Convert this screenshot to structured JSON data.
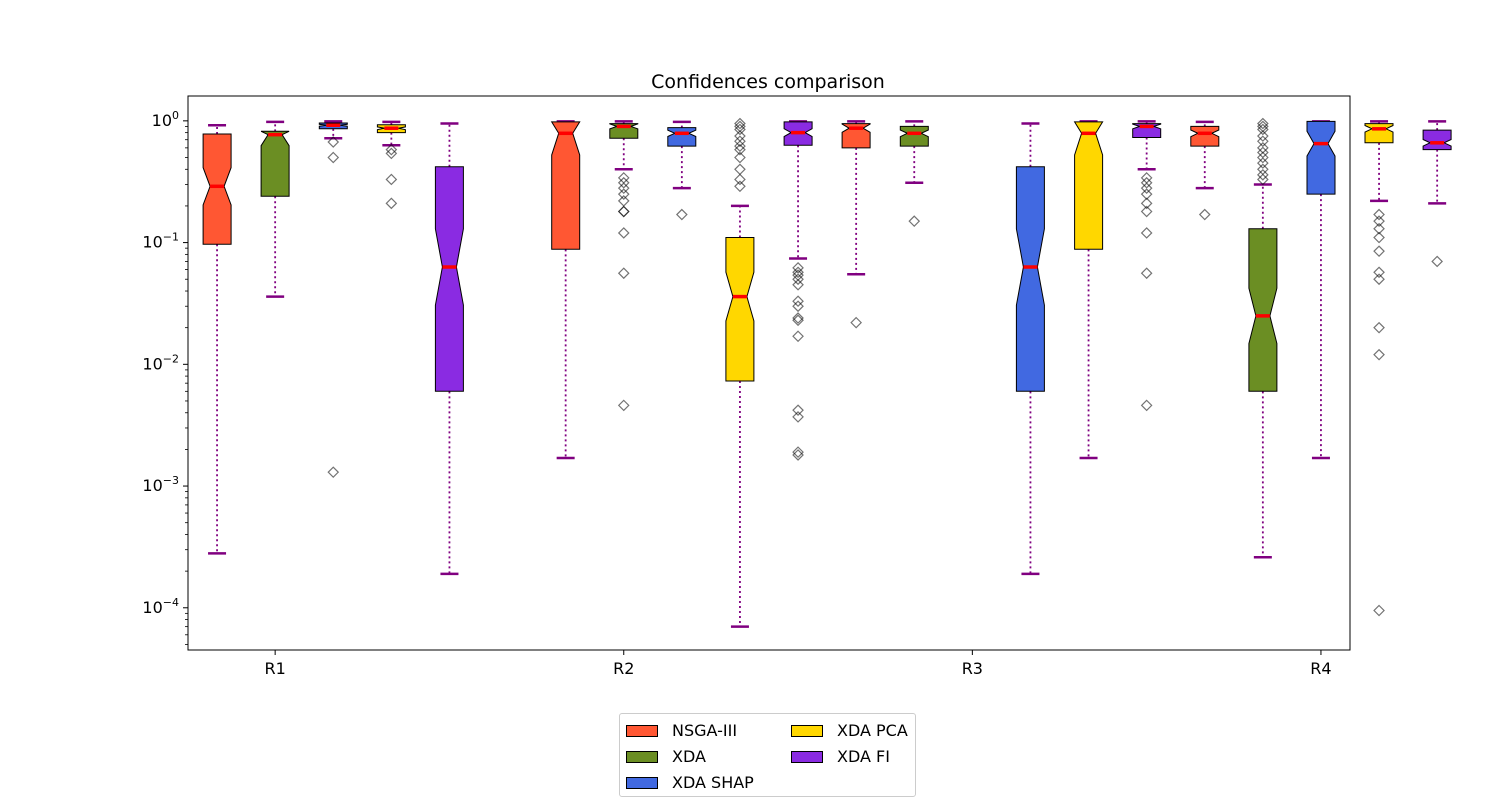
{
  "chart_data": {
    "type": "boxplot",
    "title": "Confidences comparison",
    "xlabel": "",
    "ylabel": "",
    "yscale": "log",
    "ylim": [
      4.5e-05,
      1.6
    ],
    "y_ticks": [
      {
        "value": 1,
        "label_base": "10",
        "label_exp": "0"
      },
      {
        "value": 0.1,
        "label_base": "10",
        "label_exp": "−1"
      },
      {
        "value": 0.01,
        "label_base": "10",
        "label_exp": "−2"
      },
      {
        "value": 0.001,
        "label_base": "10",
        "label_exp": "−3"
      },
      {
        "value": 0.0001,
        "label_base": "10",
        "label_exp": "−4"
      }
    ],
    "x_ticks": [
      {
        "label": "R1",
        "position": 1
      },
      {
        "label": "R2",
        "position": 7
      },
      {
        "label": "R3",
        "position": 13
      },
      {
        "label": "R4",
        "position": 19
      }
    ],
    "xlim": [
      -0.5,
      19.5
    ],
    "legend_position": "below",
    "series": [
      {
        "name": "NSGA-III",
        "color": "#FF5733"
      },
      {
        "name": "XDA",
        "color": "#6B8E23"
      },
      {
        "name": "XDA SHAP",
        "color": "#4169E1"
      },
      {
        "name": "XDA PCA",
        "color": "#FFD700"
      },
      {
        "name": "XDA FI",
        "color": "#8A2BE2"
      }
    ],
    "boxes": [
      {
        "position": 0,
        "series": "NSGA-III",
        "whislo": 0.00028,
        "q1": 0.097,
        "med": 0.29,
        "q3": 0.78,
        "whishi": 0.92,
        "fliers": []
      },
      {
        "position": 1,
        "series": "XDA",
        "whislo": 0.036,
        "q1": 0.24,
        "med": 0.77,
        "q3": 0.82,
        "whishi": 0.98,
        "fliers": []
      },
      {
        "position": 2,
        "series": "XDA SHAP",
        "whislo": 0.72,
        "q1": 0.86,
        "med": 0.92,
        "q3": 0.96,
        "whishi": 0.99,
        "fliers": [
          0.67,
          0.5,
          0.0013
        ]
      },
      {
        "position": 3,
        "series": "XDA PCA",
        "whislo": 0.63,
        "q1": 0.8,
        "med": 0.87,
        "q3": 0.93,
        "whishi": 0.98,
        "fliers": [
          0.58,
          0.54,
          0.33,
          0.21
        ]
      },
      {
        "position": 4,
        "series": "XDA FI",
        "whislo": 0.00019,
        "q1": 0.006,
        "med": 0.063,
        "q3": 0.42,
        "whishi": 0.95,
        "fliers": []
      },
      {
        "position": 6,
        "series": "NSGA-III",
        "whislo": 0.0017,
        "q1": 0.088,
        "med": 0.79,
        "q3": 0.98,
        "whishi": 0.99,
        "fliers": []
      },
      {
        "position": 7,
        "series": "XDA",
        "whislo": 0.4,
        "q1": 0.72,
        "med": 0.9,
        "q3": 0.95,
        "whishi": 0.99,
        "fliers": [
          0.34,
          0.31,
          0.28,
          0.25,
          0.22,
          0.18,
          0.18,
          0.12,
          0.056,
          0.0046
        ]
      },
      {
        "position": 8,
        "series": "XDA SHAP",
        "whislo": 0.28,
        "q1": 0.62,
        "med": 0.79,
        "q3": 0.88,
        "whishi": 0.98,
        "fliers": [
          0.17
        ]
      },
      {
        "position": 9,
        "series": "XDA PCA",
        "whislo": 7e-05,
        "q1": 0.0073,
        "med": 0.036,
        "q3": 0.11,
        "whishi": 0.2,
        "fliers": [
          0.95,
          0.9,
          0.85,
          0.75,
          0.68,
          0.62,
          0.58,
          0.5,
          0.4,
          0.33,
          0.29
        ]
      },
      {
        "position": 10,
        "series": "XDA FI",
        "whislo": 0.074,
        "q1": 0.63,
        "med": 0.8,
        "q3": 0.98,
        "whishi": 0.99,
        "fliers": [
          0.062,
          0.057,
          0.054,
          0.05,
          0.045,
          0.033,
          0.03,
          0.024,
          0.023,
          0.017,
          0.0042,
          0.0037,
          0.0019,
          0.0018
        ]
      },
      {
        "position": 11,
        "series": "NSGA-III",
        "whislo": 0.055,
        "q1": 0.6,
        "med": 0.87,
        "q3": 0.95,
        "whishi": 0.99,
        "fliers": [
          0.022
        ]
      },
      {
        "position": 12,
        "series": "XDA",
        "whislo": 0.31,
        "q1": 0.62,
        "med": 0.79,
        "q3": 0.9,
        "whishi": 0.99,
        "fliers": [
          0.15
        ]
      },
      {
        "position": 14,
        "series": "XDA SHAP",
        "whislo": 0.00019,
        "q1": 0.006,
        "med": 0.063,
        "q3": 0.42,
        "whishi": 0.95,
        "fliers": []
      },
      {
        "position": 15,
        "series": "XDA PCA",
        "whislo": 0.0017,
        "q1": 0.088,
        "med": 0.79,
        "q3": 0.98,
        "whishi": 0.99,
        "fliers": []
      },
      {
        "position": 16,
        "series": "XDA FI",
        "whislo": 0.4,
        "q1": 0.73,
        "med": 0.9,
        "q3": 0.95,
        "whishi": 0.99,
        "fliers": [
          0.34,
          0.31,
          0.28,
          0.25,
          0.21,
          0.18,
          0.12,
          0.056,
          0.0046
        ]
      },
      {
        "position": 17,
        "series": "NSGA-III",
        "whislo": 0.28,
        "q1": 0.62,
        "med": 0.79,
        "q3": 0.9,
        "whishi": 0.98,
        "fliers": [
          0.17
        ]
      },
      {
        "position": 18,
        "series": "XDA",
        "whislo": 0.00026,
        "q1": 0.006,
        "med": 0.025,
        "q3": 0.13,
        "whishi": 0.3,
        "fliers": [
          0.95,
          0.9,
          0.85,
          0.75,
          0.68,
          0.6,
          0.55,
          0.5,
          0.45,
          0.4,
          0.36,
          0.33
        ]
      },
      {
        "position": 19,
        "series": "XDA SHAP",
        "whislo": 0.0017,
        "q1": 0.25,
        "med": 0.65,
        "q3": 0.99,
        "whishi": 0.99,
        "fliers": []
      },
      {
        "position": 20,
        "series": "XDA PCA",
        "whislo": 0.22,
        "q1": 0.66,
        "med": 0.86,
        "q3": 0.95,
        "whishi": 0.99,
        "fliers": [
          0.17,
          0.15,
          0.13,
          0.11,
          0.085,
          0.057,
          0.05,
          0.02,
          0.012,
          9.5e-05
        ]
      },
      {
        "position": 21,
        "series": "XDA FI",
        "whislo": 0.21,
        "q1": 0.58,
        "med": 0.66,
        "q3": 0.84,
        "whishi": 0.99,
        "fliers": [
          0.07
        ]
      }
    ]
  }
}
